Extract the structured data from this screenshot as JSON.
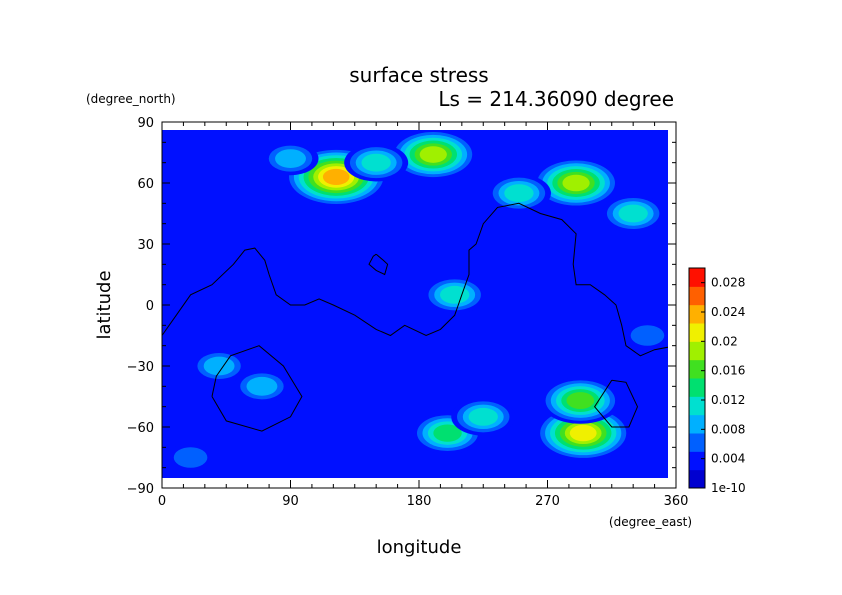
{
  "chart_data": {
    "type": "heatmap",
    "title": "surface stress",
    "subtitle": "Ls = 214.36090 degree",
    "xlabel": "longitude",
    "ylabel": "latitude",
    "x_unit": "(degree_east)",
    "y_unit": "(degree_north)",
    "xlim": [
      0,
      360
    ],
    "ylim": [
      -90,
      90
    ],
    "x_ticks": [
      "0",
      "90",
      "180",
      "270",
      "360"
    ],
    "y_ticks": [
      "90",
      "60",
      "30",
      "0",
      "−30",
      "−60",
      "−90"
    ],
    "x_tick_values": [
      0,
      90,
      180,
      270,
      360
    ],
    "y_tick_values": [
      90,
      60,
      30,
      0,
      -30,
      -60,
      -90
    ],
    "colorbar": {
      "ticks": [
        "0.028",
        "0.024",
        "0.02",
        "0.016",
        "0.012",
        "0.008",
        "0.004",
        "1e-10"
      ],
      "tick_values": [
        0.028,
        0.024,
        0.02,
        0.016,
        0.012,
        0.008,
        0.004,
        0
      ],
      "range": [
        0,
        0.03
      ],
      "colors": [
        "#0000d0",
        "#0010ff",
        "#0060ff",
        "#00b0ff",
        "#00e0d0",
        "#00e070",
        "#40e020",
        "#a0f000",
        "#f0f000",
        "#ffb000",
        "#ff6000",
        "#ff1000"
      ]
    },
    "grid": false,
    "colormap_levels_count": 12,
    "hotspots": [
      {
        "lon": 122,
        "lat": 63,
        "value": 0.024
      },
      {
        "lon": 190,
        "lat": 74,
        "value": 0.019
      },
      {
        "lon": 290,
        "lat": 60,
        "value": 0.018
      },
      {
        "lon": 295,
        "lat": -63,
        "value": 0.022
      },
      {
        "lon": 293,
        "lat": -47,
        "value": 0.016
      },
      {
        "lon": 200,
        "lat": -63,
        "value": 0.014
      },
      {
        "lon": 225,
        "lat": -55,
        "value": 0.012
      },
      {
        "lon": 205,
        "lat": 5,
        "value": 0.011
      },
      {
        "lon": 70,
        "lat": -40,
        "value": 0.009
      },
      {
        "lon": 40,
        "lat": -30,
        "value": 0.008
      },
      {
        "lon": 330,
        "lat": 45,
        "value": 0.01
      },
      {
        "lon": 250,
        "lat": 55,
        "value": 0.012
      },
      {
        "lon": 150,
        "lat": 70,
        "value": 0.012
      },
      {
        "lon": 90,
        "lat": 72,
        "value": 0.008
      },
      {
        "lon": 20,
        "lat": -75,
        "value": 0.007
      },
      {
        "lon": 340,
        "lat": -15,
        "value": 0.006
      }
    ],
    "contours": [
      [
        [
          0,
          -15
        ],
        [
          10,
          -5
        ],
        [
          20,
          5
        ],
        [
          35,
          10
        ],
        [
          50,
          20
        ],
        [
          58,
          27
        ],
        [
          65,
          28
        ],
        [
          72,
          22
        ],
        [
          75,
          15
        ],
        [
          80,
          5
        ],
        [
          90,
          0
        ],
        [
          100,
          0
        ],
        [
          110,
          3
        ],
        [
          120,
          0
        ],
        [
          135,
          -5
        ],
        [
          150,
          -12
        ],
        [
          160,
          -15
        ],
        [
          170,
          -10
        ],
        [
          185,
          -15
        ],
        [
          195,
          -12
        ],
        [
          205,
          -5
        ],
        [
          210,
          5
        ],
        [
          215,
          15
        ],
        [
          215,
          27
        ],
        [
          220,
          30
        ],
        [
          225,
          40
        ],
        [
          235,
          48
        ],
        [
          250,
          50
        ],
        [
          265,
          45
        ],
        [
          280,
          42
        ],
        [
          290,
          35
        ],
        [
          288,
          20
        ],
        [
          290,
          10
        ],
        [
          300,
          10
        ],
        [
          310,
          5
        ],
        [
          318,
          0
        ],
        [
          322,
          -10
        ],
        [
          325,
          -20
        ],
        [
          335,
          -25
        ],
        [
          345,
          -22
        ],
        [
          360,
          -20
        ]
      ],
      [
        [
          150,
          25
        ],
        [
          155,
          22
        ],
        [
          158,
          20
        ],
        [
          156,
          15
        ],
        [
          150,
          17
        ],
        [
          145,
          20
        ],
        [
          148,
          24
        ],
        [
          150,
          25
        ]
      ],
      [
        [
          35,
          -45
        ],
        [
          38,
          -35
        ],
        [
          48,
          -25
        ],
        [
          68,
          -20
        ],
        [
          85,
          -30
        ],
        [
          98,
          -45
        ],
        [
          90,
          -55
        ],
        [
          70,
          -62
        ],
        [
          45,
          -57
        ],
        [
          35,
          -45
        ]
      ],
      [
        [
          315,
          -37
        ],
        [
          325,
          -38
        ],
        [
          333,
          -50
        ],
        [
          327,
          -60
        ],
        [
          315,
          -60
        ],
        [
          303,
          -50
        ],
        [
          315,
          -37
        ]
      ]
    ]
  }
}
